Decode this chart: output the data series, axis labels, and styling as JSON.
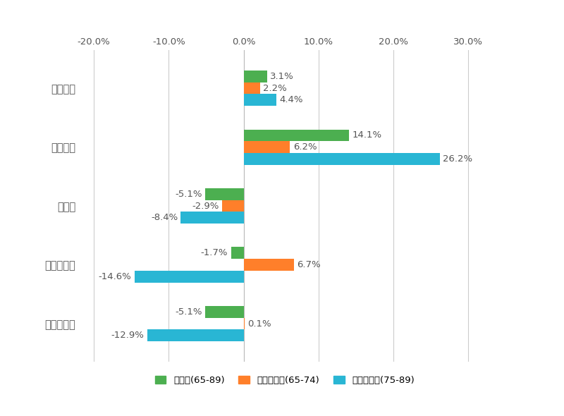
{
  "categories": [
    "加工食品",
    "生鮮食品",
    "菓子類",
    "飲料・酒類",
    "その他食品"
  ],
  "series": {
    "高齢者(65-89)": [
      3.1,
      14.1,
      -5.1,
      -1.7,
      -5.1
    ],
    "前期高齢者(65-74)": [
      2.2,
      6.2,
      -2.9,
      6.7,
      0.1
    ],
    "後期高齢者(75-89)": [
      4.4,
      26.2,
      -8.4,
      -14.6,
      -12.9
    ]
  },
  "colors": {
    "高齢者(65-89)": "#4CAF50",
    "前期高齢者(65-74)": "#FF7F2A",
    "後期高齢者(75-89)": "#29B6D4"
  },
  "xlim": [
    -22,
    33
  ],
  "xticks": [
    -20.0,
    -10.0,
    0.0,
    10.0,
    20.0,
    30.0
  ],
  "xtick_labels": [
    "-20.0%",
    "-10.0%",
    "0.0%",
    "10.0%",
    "20.0%",
    "30.0%"
  ],
  "bar_height": 0.2,
  "background_color": "#ffffff",
  "grid_color": "#cccccc",
  "label_fontsize": 9.5,
  "tick_fontsize": 9.5,
  "legend_fontsize": 9.5,
  "category_fontsize": 10.5,
  "text_color": "#555555"
}
